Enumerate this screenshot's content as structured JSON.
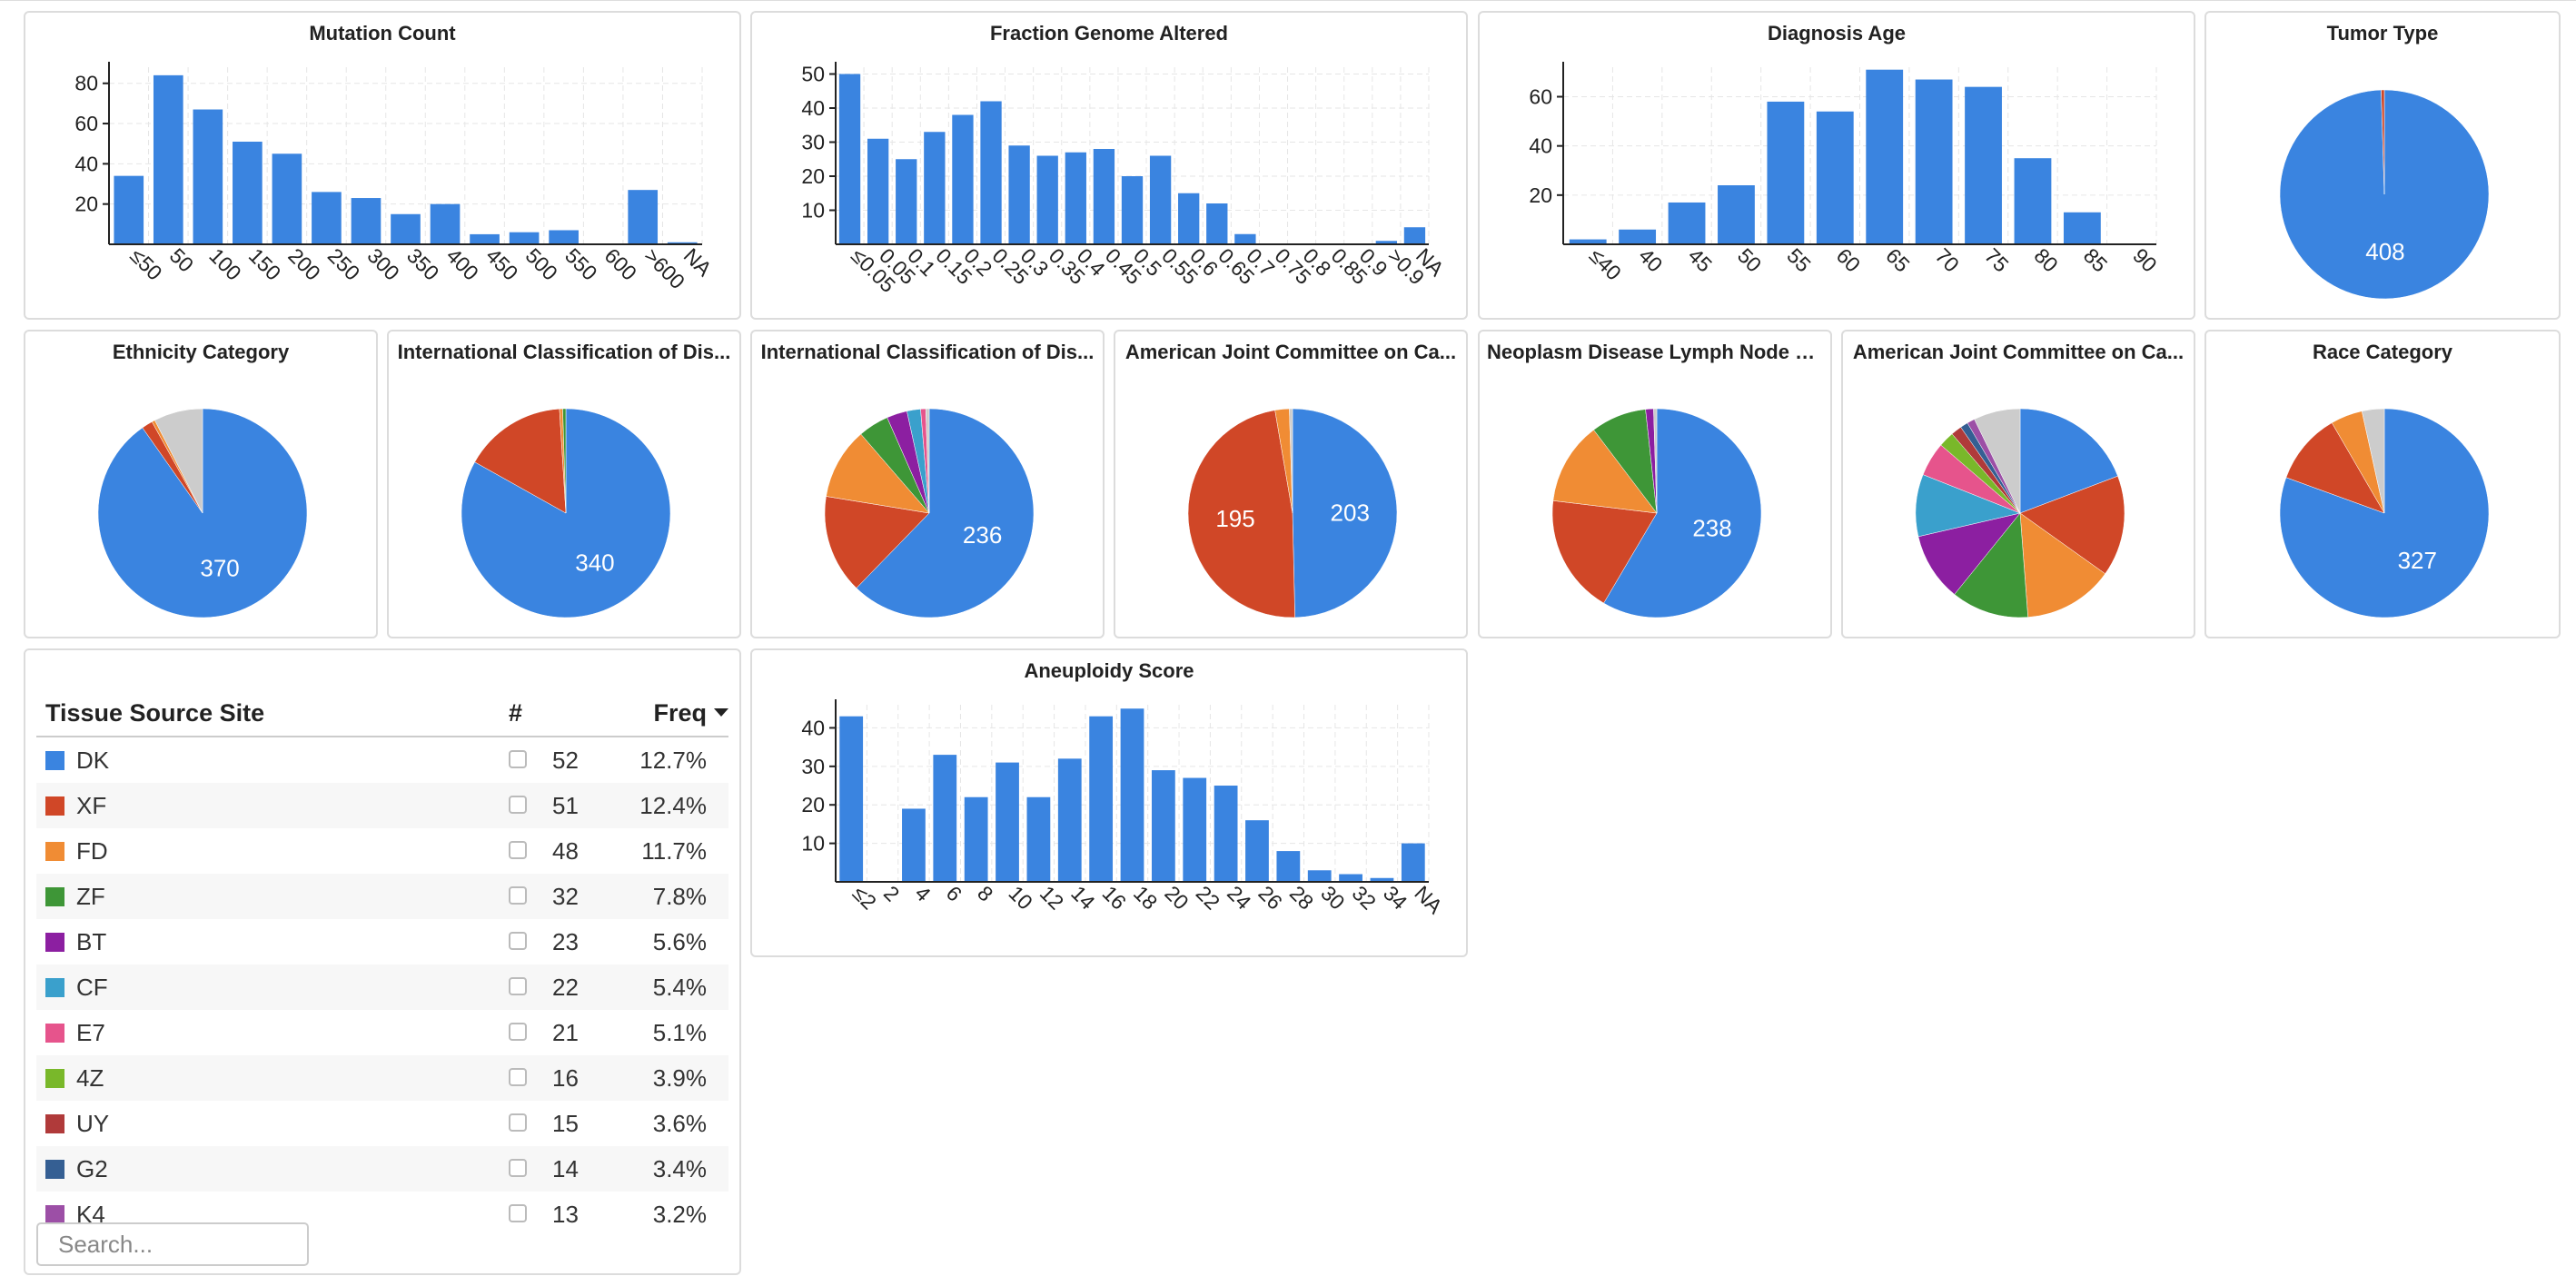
{
  "bar_charts": [
    {
      "id": "mutation",
      "title": "Mutation Count",
      "chart_data": {
        "type": "bar",
        "categories": [
          "≤50",
          "50",
          "100",
          "150",
          "200",
          "250",
          "300",
          "350",
          "400",
          "450",
          "500",
          "550",
          "600",
          ">600",
          "NA"
        ],
        "values": [
          34,
          84,
          67,
          51,
          45,
          26,
          23,
          15,
          20,
          5,
          6,
          7,
          0,
          27,
          1
        ],
        "ylim": [
          0,
          88
        ],
        "yticks": [
          20,
          40,
          60,
          80
        ]
      }
    },
    {
      "id": "fga",
      "title": "Fraction Genome Altered",
      "chart_data": {
        "type": "bar",
        "categories": [
          "≤0.05",
          "0.05",
          "0.1",
          "0.15",
          "0.2",
          "0.25",
          "0.3",
          "0.35",
          "0.4",
          "0.45",
          "0.5",
          "0.55",
          "0.6",
          "0.65",
          "0.7",
          "0.75",
          "0.8",
          "0.85",
          "0.9",
          ">0.9",
          "NA"
        ],
        "values": [
          50,
          31,
          25,
          33,
          38,
          42,
          29,
          26,
          27,
          28,
          20,
          26,
          15,
          12,
          3,
          0,
          0,
          0,
          0,
          1,
          5
        ],
        "ylim": [
          0,
          52
        ],
        "yticks": [
          10,
          20,
          30,
          40,
          50
        ]
      }
    },
    {
      "id": "age",
      "title": "Diagnosis Age",
      "chart_data": {
        "type": "bar",
        "categories": [
          "≤40",
          "40",
          "45",
          "50",
          "55",
          "60",
          "65",
          "70",
          "75",
          "80",
          "85",
          "90"
        ],
        "values": [
          2,
          6,
          17,
          24,
          58,
          54,
          71,
          67,
          64,
          35,
          13,
          0
        ],
        "ylim": [
          0,
          72
        ],
        "yticks": [
          20,
          40,
          60
        ]
      }
    },
    {
      "id": "aneuploidy",
      "title": "Aneuploidy Score",
      "chart_data": {
        "type": "bar",
        "categories": [
          "≤2",
          "2",
          "4",
          "6",
          "8",
          "10",
          "12",
          "14",
          "16",
          "18",
          "20",
          "22",
          "24",
          "26",
          "28",
          "30",
          "32",
          "34",
          "NA"
        ],
        "values": [
          43,
          0,
          19,
          33,
          22,
          31,
          22,
          32,
          43,
          45,
          29,
          27,
          25,
          16,
          8,
          3,
          2,
          1,
          10
        ],
        "ylim": [
          0,
          46
        ],
        "yticks": [
          10,
          20,
          30,
          40
        ]
      }
    }
  ],
  "pie_charts": [
    {
      "id": "tumor",
      "title": "Tumor Type",
      "chart_data": {
        "type": "pie",
        "values": [
          408,
          2
        ],
        "colors": [
          "#3a84e0",
          "#d04727"
        ],
        "labels": [
          "408",
          ""
        ]
      }
    },
    {
      "id": "ethnicity",
      "title": "Ethnicity Category",
      "chart_data": {
        "type": "pie",
        "values": [
          370,
          7,
          2,
          31
        ],
        "colors": [
          "#3a84e0",
          "#d04727",
          "#f08c34",
          "#cccccc"
        ],
        "labels": [
          "370",
          "",
          "",
          ""
        ]
      }
    },
    {
      "id": "icd1",
      "title": "International Classification of Dis...",
      "chart_data": {
        "type": "pie",
        "values": [
          340,
          65,
          2,
          2
        ],
        "colors": [
          "#3a84e0",
          "#d04727",
          "#f08c34",
          "#3e9637"
        ],
        "labels": [
          "340",
          "",
          "",
          ""
        ]
      }
    },
    {
      "id": "icd2",
      "title": "International Classification of Dis...",
      "chart_data": {
        "type": "pie",
        "values": [
          236,
          58,
          42,
          18,
          12,
          8,
          3,
          2
        ],
        "colors": [
          "#3a84e0",
          "#d04727",
          "#f08c34",
          "#3e9637",
          "#8c1fa1",
          "#3aa0cc",
          "#e6548c",
          "#cccccc"
        ],
        "labels": [
          "236",
          "",
          "",
          "",
          "",
          "",
          "",
          ""
        ]
      }
    },
    {
      "id": "ajcc1",
      "title": "American Joint Committee on Ca...",
      "chart_data": {
        "type": "pie",
        "values": [
          203,
          195,
          9,
          2
        ],
        "colors": [
          "#3a84e0",
          "#d04727",
          "#f08c34",
          "#cccccc"
        ],
        "labels": [
          "203",
          "195",
          "",
          ""
        ]
      }
    },
    {
      "id": "lymph",
      "title": "Neoplasm Disease Lymph Node S...",
      "chart_data": {
        "type": "pie",
        "values": [
          238,
          75,
          52,
          35,
          5,
          2
        ],
        "colors": [
          "#3a84e0",
          "#d04727",
          "#f08c34",
          "#3e9637",
          "#8c1fa1",
          "#cccccc"
        ],
        "labels": [
          "238",
          "",
          "",
          "",
          "",
          ""
        ]
      }
    },
    {
      "id": "ajcc2",
      "title": "American Joint Committee on Ca...",
      "chart_data": {
        "type": "pie",
        "values": [
          80,
          65,
          58,
          50,
          44,
          40,
          22,
          10,
          7,
          5,
          5,
          30
        ],
        "colors": [
          "#3a84e0",
          "#d04727",
          "#f08c34",
          "#3e9637",
          "#8c1fa1",
          "#3aa0cc",
          "#e6548c",
          "#79b82a",
          "#b03a3a",
          "#355f93",
          "#9c4fa6",
          "#cccccc"
        ],
        "labels": [
          "",
          "",
          "",
          "",
          "",
          "",
          "",
          "",
          "",
          "",
          "",
          ""
        ]
      }
    },
    {
      "id": "race",
      "title": "Race Category",
      "chart_data": {
        "type": "pie",
        "values": [
          327,
          45,
          20,
          14
        ],
        "colors": [
          "#3a84e0",
          "#d04727",
          "#f08c34",
          "#cccccc"
        ],
        "labels": [
          "327",
          "",
          "",
          ""
        ]
      }
    }
  ],
  "table": {
    "title": "Tissue Source Site",
    "col_count": "#",
    "col_freq": "Freq",
    "rows": [
      {
        "name": "DK",
        "count": "52",
        "freq": "12.7%",
        "color": "#3a84e0"
      },
      {
        "name": "XF",
        "count": "51",
        "freq": "12.4%",
        "color": "#d04727"
      },
      {
        "name": "FD",
        "count": "48",
        "freq": "11.7%",
        "color": "#f08c34"
      },
      {
        "name": "ZF",
        "count": "32",
        "freq": "7.8%",
        "color": "#3e9637"
      },
      {
        "name": "BT",
        "count": "23",
        "freq": "5.6%",
        "color": "#8c1fa1"
      },
      {
        "name": "CF",
        "count": "22",
        "freq": "5.4%",
        "color": "#3aa0cc"
      },
      {
        "name": "E7",
        "count": "21",
        "freq": "5.1%",
        "color": "#e6548c"
      },
      {
        "name": "4Z",
        "count": "16",
        "freq": "3.9%",
        "color": "#79b82a"
      },
      {
        "name": "UY",
        "count": "15",
        "freq": "3.6%",
        "color": "#b03a3a"
      },
      {
        "name": "G2",
        "count": "14",
        "freq": "3.4%",
        "color": "#355f93"
      },
      {
        "name": "K4",
        "count": "13",
        "freq": "3.2%",
        "color": "#9c4fa6"
      }
    ],
    "search_placeholder": "Search..."
  },
  "colors": {
    "bar": "#3a84e0"
  }
}
